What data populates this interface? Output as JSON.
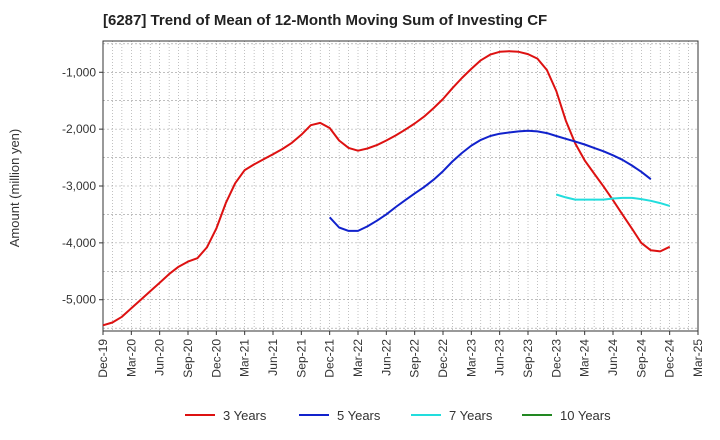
{
  "chart_data": {
    "type": "line",
    "title": "[6287]  Trend of Mean of 12-Month Moving Sum of Investing CF",
    "xlabel": "",
    "ylabel": "Amount (million yen)",
    "ylim": [
      -5550,
      -450
    ],
    "y_ticks": [
      -1000,
      -2000,
      -3000,
      -4000,
      -5000
    ],
    "y_tick_labels": [
      "-1,000",
      "-2,000",
      "-3,000",
      "-4,000",
      "-5,000"
    ],
    "x_tick_labels": [
      "Dec-19",
      "Mar-20",
      "Jun-20",
      "Sep-20",
      "Dec-20",
      "Mar-21",
      "Jun-21",
      "Sep-21",
      "Dec-21",
      "Mar-22",
      "Jun-22",
      "Sep-22",
      "Dec-22",
      "Mar-23",
      "Jun-23",
      "Sep-23",
      "Dec-23",
      "Mar-24",
      "Jun-24",
      "Sep-24",
      "Dec-24",
      "Mar-25"
    ],
    "grid": true,
    "legend_position": "bottom",
    "series": [
      {
        "name": "3 Years",
        "color": "#dd1111",
        "start_month_index": 0,
        "values": [
          -5450,
          -5400,
          -5300,
          -5150,
          -5000,
          -4850,
          -4700,
          -4550,
          -4420,
          -4330,
          -4270,
          -4080,
          -3750,
          -3300,
          -2950,
          -2720,
          -2620,
          -2530,
          -2440,
          -2350,
          -2240,
          -2100,
          -1930,
          -1890,
          -1980,
          -2200,
          -2330,
          -2380,
          -2340,
          -2280,
          -2200,
          -2110,
          -2010,
          -1900,
          -1780,
          -1630,
          -1470,
          -1280,
          -1100,
          -940,
          -790,
          -690,
          -640,
          -630,
          -640,
          -680,
          -760,
          -960,
          -1330,
          -1850,
          -2250,
          -2550,
          -2780,
          -3010,
          -3250,
          -3500,
          -3750,
          -4000,
          -4130,
          -4150,
          -4070
        ]
      },
      {
        "name": "5 Years",
        "color": "#1122cc",
        "start_month_index": 24,
        "values": [
          -3550,
          -3730,
          -3790,
          -3790,
          -3710,
          -3610,
          -3500,
          -3370,
          -3250,
          -3130,
          -3020,
          -2890,
          -2740,
          -2570,
          -2420,
          -2290,
          -2190,
          -2120,
          -2080,
          -2060,
          -2040,
          -2030,
          -2040,
          -2070,
          -2120,
          -2170,
          -2220,
          -2270,
          -2330,
          -2390,
          -2460,
          -2540,
          -2640,
          -2750,
          -2880
        ]
      },
      {
        "name": "7 Years",
        "color": "#22dddd",
        "start_month_index": 48,
        "values": [
          -3150,
          -3200,
          -3240,
          -3240,
          -3240,
          -3240,
          -3220,
          -3210,
          -3210,
          -3230,
          -3260,
          -3300,
          -3350
        ]
      },
      {
        "name": "10 Years",
        "color": "#228822",
        "start_month_index": 0,
        "values": []
      }
    ]
  }
}
